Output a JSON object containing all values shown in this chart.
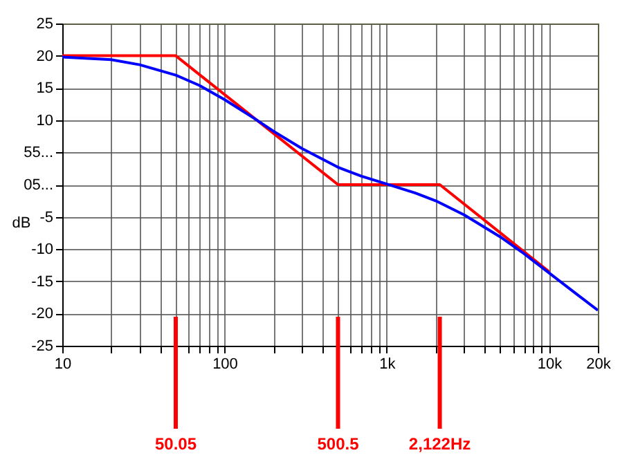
{
  "chart_data": {
    "type": "line",
    "ylabel": "dB",
    "xlim": [
      10,
      20000
    ],
    "ylim": [
      -25,
      25
    ],
    "log": "x",
    "grid": true,
    "marker": "none",
    "line_style": "solid",
    "xticks": [
      10,
      {
        "value": 20,
        "label": null
      },
      {
        "value": 30,
        "label": null
      },
      {
        "value": 40,
        "label": null
      },
      {
        "value": 50,
        "label": null
      },
      {
        "value": 60,
        "label": null
      },
      {
        "value": 70,
        "label": null
      },
      {
        "value": 80,
        "label": null
      },
      {
        "value": 90,
        "label": null
      },
      100,
      {
        "value": 200,
        "label": null
      },
      {
        "value": 300,
        "label": null
      },
      {
        "value": 400,
        "label": null
      },
      {
        "value": 500,
        "label": null
      },
      {
        "value": 600,
        "label": null
      },
      {
        "value": 700,
        "label": null
      },
      {
        "value": 800,
        "label": null
      },
      {
        "value": 900,
        "label": null
      },
      {
        "value": 1000,
        "label": "1k"
      },
      {
        "value": 2000,
        "label": null
      },
      {
        "value": 3000,
        "label": null
      },
      {
        "value": 4000,
        "label": null
      },
      {
        "value": 5000,
        "label": null
      },
      {
        "value": 6000,
        "label": null
      },
      {
        "value": 7000,
        "label": null
      },
      {
        "value": 8000,
        "label": null
      },
      {
        "value": 9000,
        "label": null
      },
      {
        "value": 10000,
        "label": "10k"
      },
      {
        "value": 20000,
        "label": "20k"
      }
    ],
    "yticks": [
      -25,
      -20,
      -15,
      -10,
      -5,
      {
        "value": 0,
        "label": "05..."
      },
      {
        "value": 5,
        "label": "55..."
      },
      10,
      15,
      20,
      25
    ],
    "series": [
      {
        "color": "#ff0000",
        "x": [
          10,
          50.05,
          500.5,
          2122,
          10000
        ],
        "values": [
          20,
          20,
          0,
          0,
          -13.5
        ]
      },
      {
        "color": "#0000ff",
        "x": [
          10,
          20,
          30,
          50,
          70,
          100,
          150,
          200,
          300,
          500,
          700,
          1000,
          1500,
          2000,
          3000,
          5000,
          7000,
          10000,
          15000,
          20000
        ],
        "values": [
          19.8,
          19.4,
          18.6,
          17.0,
          15.4,
          13.2,
          10.4,
          8.3,
          5.6,
          2.7,
          1.3,
          0.1,
          -1.3,
          -2.5,
          -4.7,
          -8.1,
          -10.7,
          -13.7,
          -17.1,
          -19.5
        ]
      }
    ],
    "annotations": [
      {
        "text": "50.05",
        "x": 50.05
      },
      {
        "text": "500.5",
        "x": 500.5
      },
      {
        "text": "2,122Hz",
        "x": 2122
      }
    ]
  }
}
